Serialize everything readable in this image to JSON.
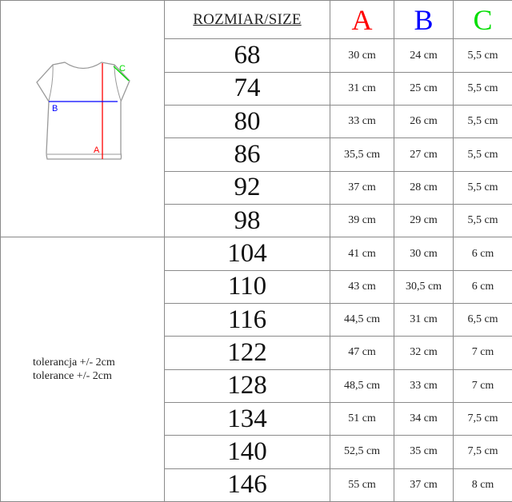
{
  "header": {
    "size_label": "ROZMIAR/SIZE",
    "a_label": "A",
    "b_label": "B",
    "c_label": "C"
  },
  "colors": {
    "a": "#ff0000",
    "b": "#0000ff",
    "c": "#00dd00",
    "grid": "#8a8a8a"
  },
  "diagram": {
    "icon": "tshirt-measurement-diagram",
    "a_label": "A",
    "b_label": "B",
    "c_label": "C"
  },
  "tolerance": {
    "pl": "tolerancja +/- 2cm",
    "en": "tolerance +/- 2cm"
  },
  "rows": [
    {
      "size": "68",
      "a": "30 cm",
      "b": "24 cm",
      "c": "5,5 cm"
    },
    {
      "size": "74",
      "a": "31 cm",
      "b": "25 cm",
      "c": "5,5 cm"
    },
    {
      "size": "80",
      "a": "33 cm",
      "b": "26 cm",
      "c": "5,5 cm"
    },
    {
      "size": "86",
      "a": "35,5 cm",
      "b": "27 cm",
      "c": "5,5 cm"
    },
    {
      "size": "92",
      "a": "37 cm",
      "b": "28 cm",
      "c": "5,5 cm"
    },
    {
      "size": "98",
      "a": "39 cm",
      "b": "29 cm",
      "c": "5,5 cm"
    },
    {
      "size": "104",
      "a": "41 cm",
      "b": "30 cm",
      "c": "6 cm"
    },
    {
      "size": "110",
      "a": "43 cm",
      "b": "30,5 cm",
      "c": "6 cm"
    },
    {
      "size": "116",
      "a": "44,5 cm",
      "b": "31 cm",
      "c": "6,5 cm"
    },
    {
      "size": "122",
      "a": "47 cm",
      "b": "32 cm",
      "c": "7 cm"
    },
    {
      "size": "128",
      "a": "48,5 cm",
      "b": "33 cm",
      "c": "7 cm"
    },
    {
      "size": "134",
      "a": "51 cm",
      "b": "34 cm",
      "c": "7,5 cm"
    },
    {
      "size": "140",
      "a": "52,5 cm",
      "b": "35 cm",
      "c": "7,5 cm"
    },
    {
      "size": "146",
      "a": "55 cm",
      "b": "37 cm",
      "c": "8 cm"
    }
  ]
}
